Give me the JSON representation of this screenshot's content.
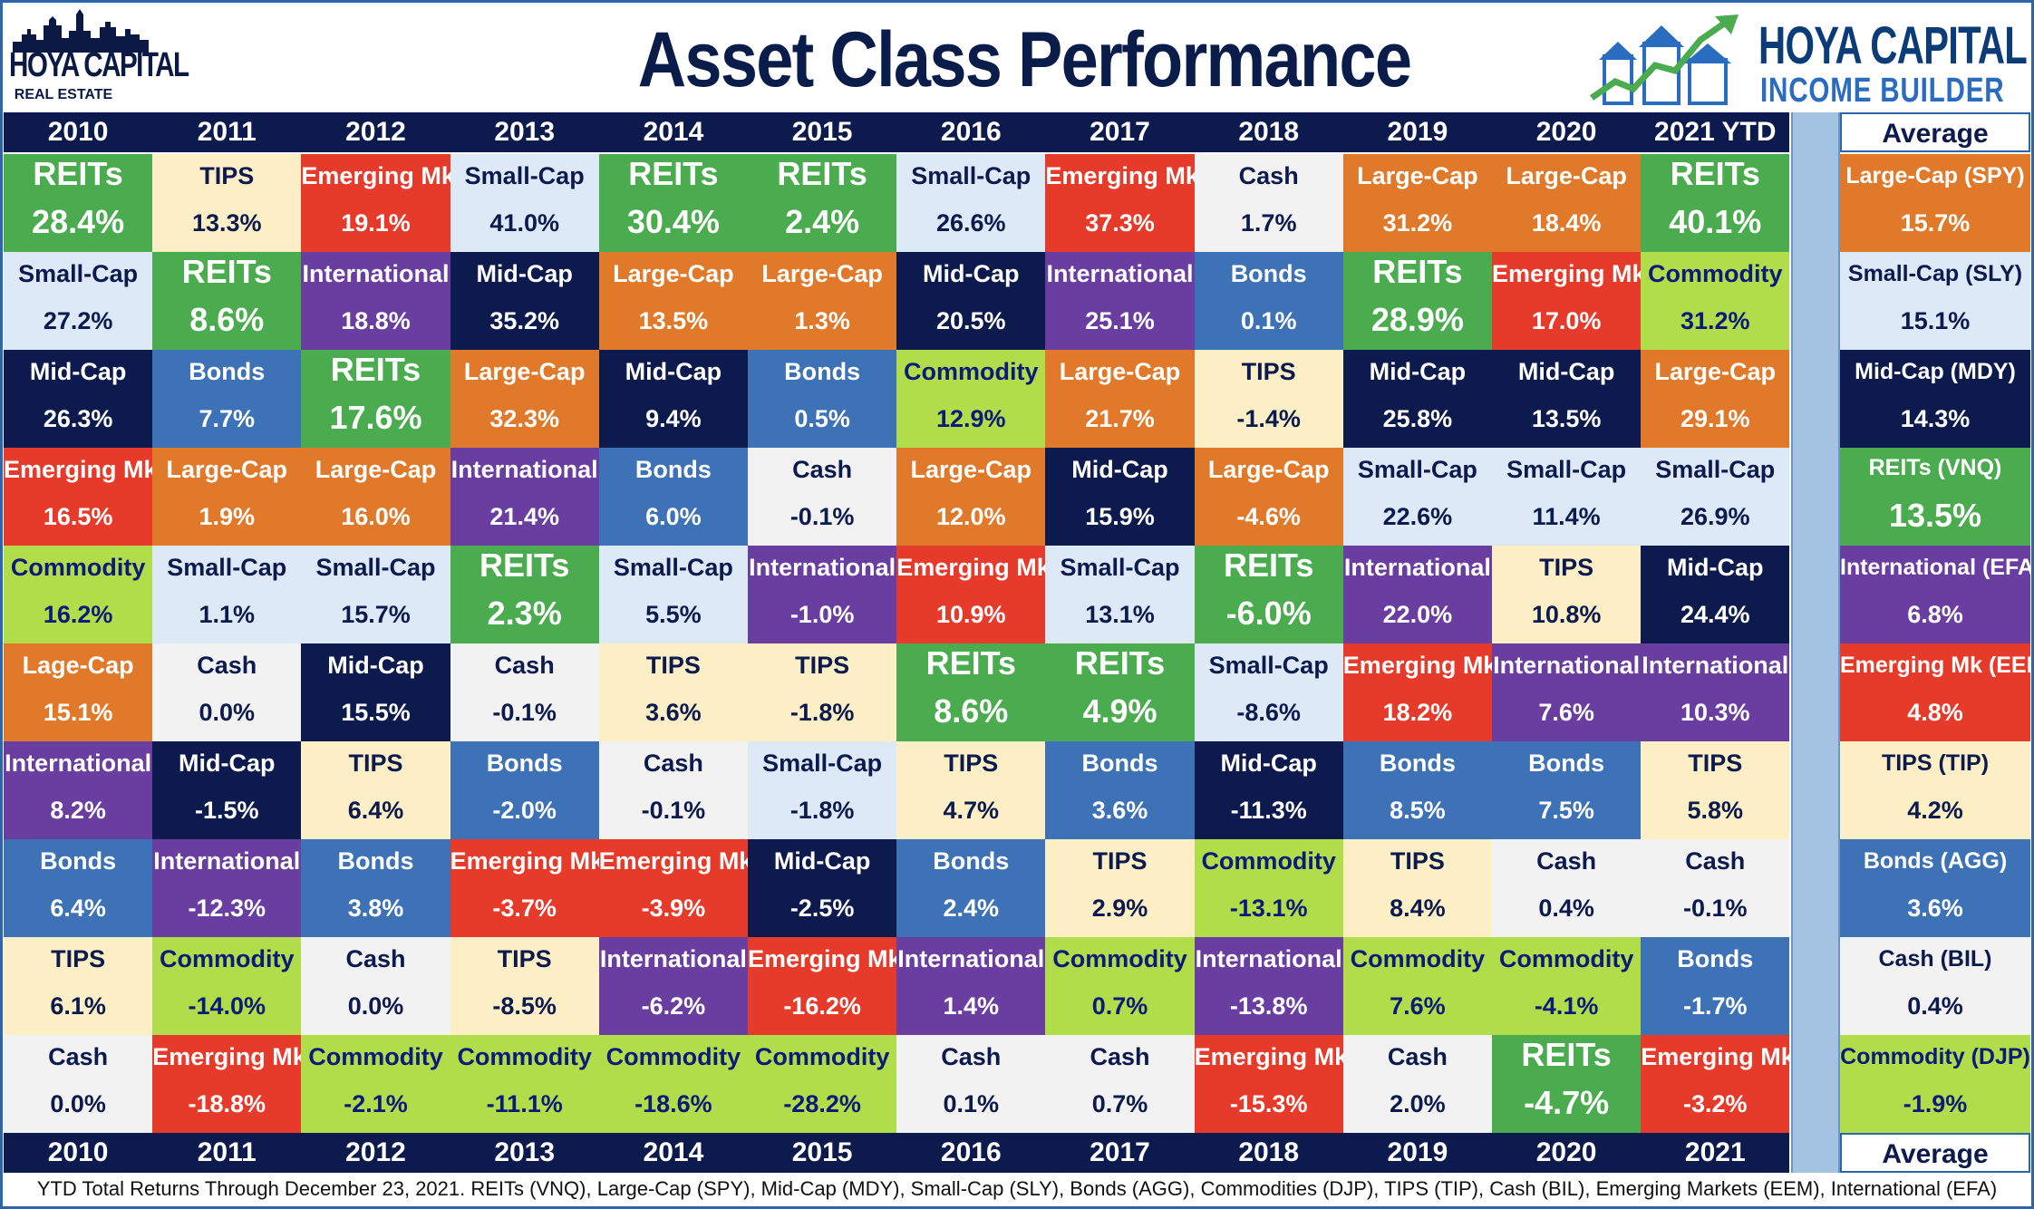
{
  "header": {
    "title": "Asset Class Performance",
    "left_logo_line1": "HOYA CAPITAL",
    "left_logo_line2": "REAL ESTATE",
    "right_logo_line1": "HOYA CAPITAL",
    "right_logo_line2": "INCOME BUILDER"
  },
  "years_top": [
    "2010",
    "2011",
    "2012",
    "2013",
    "2014",
    "2015",
    "2016",
    "2017",
    "2018",
    "2019",
    "2020",
    "2021 YTD"
  ],
  "years_bottom": [
    "2010",
    "2011",
    "2012",
    "2013",
    "2014",
    "2015",
    "2016",
    "2017",
    "2018",
    "2019",
    "2020",
    "2021"
  ],
  "average_label_top": "Average",
  "average_label_bottom": "Average",
  "colors": {
    "REITs": "#4aab4f",
    "Large-Cap": "#e07a2a",
    "Mid-Cap": "#0c1a4d",
    "Small-Cap": "#dde9f6",
    "Bonds": "#3e72b6",
    "Commodity": "#b0dd49",
    "TIPS": "#fcefc6",
    "Cash": "#f2f2f2",
    "Emerging Mk": "#e63a2a",
    "International": "#6a3ea0"
  },
  "chart_data": {
    "type": "table",
    "title": "Asset Class Performance",
    "columns": [
      "2010",
      "2011",
      "2012",
      "2013",
      "2014",
      "2015",
      "2016",
      "2017",
      "2018",
      "2019",
      "2020",
      "2021 YTD"
    ],
    "ranked_returns": [
      [
        {
          "asset": "REITs",
          "label": "REITs",
          "ret": "28.4%"
        },
        {
          "asset": "Small-Cap",
          "label": "Small-Cap",
          "ret": "27.2%"
        },
        {
          "asset": "Mid-Cap",
          "label": "Mid-Cap",
          "ret": "26.3%"
        },
        {
          "asset": "Emerging Mk",
          "label": "Emerging Mk",
          "ret": "16.5%"
        },
        {
          "asset": "Commodity",
          "label": "Commodity",
          "ret": "16.2%"
        },
        {
          "asset": "Large-Cap",
          "label": "Lage-Cap",
          "ret": "15.1%"
        },
        {
          "asset": "International",
          "label": "International",
          "ret": "8.2%"
        },
        {
          "asset": "Bonds",
          "label": "Bonds",
          "ret": "6.4%"
        },
        {
          "asset": "TIPS",
          "label": "TIPS",
          "ret": "6.1%"
        },
        {
          "asset": "Cash",
          "label": "Cash",
          "ret": "0.0%"
        }
      ],
      [
        {
          "asset": "TIPS",
          "label": "TIPS",
          "ret": "13.3%"
        },
        {
          "asset": "REITs",
          "label": "REITs",
          "ret": "8.6%"
        },
        {
          "asset": "Bonds",
          "label": "Bonds",
          "ret": "7.7%"
        },
        {
          "asset": "Large-Cap",
          "label": "Large-Cap",
          "ret": "1.9%"
        },
        {
          "asset": "Small-Cap",
          "label": "Small-Cap",
          "ret": "1.1%"
        },
        {
          "asset": "Cash",
          "label": "Cash",
          "ret": "0.0%"
        },
        {
          "asset": "Mid-Cap",
          "label": "Mid-Cap",
          "ret": "-1.5%"
        },
        {
          "asset": "International",
          "label": "International",
          "ret": "-12.3%"
        },
        {
          "asset": "Commodity",
          "label": "Commodity",
          "ret": "-14.0%"
        },
        {
          "asset": "Emerging Mk",
          "label": "Emerging Mk",
          "ret": "-18.8%"
        }
      ],
      [
        {
          "asset": "Emerging Mk",
          "label": "Emerging Mk",
          "ret": "19.1%"
        },
        {
          "asset": "International",
          "label": "International",
          "ret": "18.8%"
        },
        {
          "asset": "REITs",
          "label": "REITs",
          "ret": "17.6%"
        },
        {
          "asset": "Large-Cap",
          "label": "Large-Cap",
          "ret": "16.0%"
        },
        {
          "asset": "Small-Cap",
          "label": "Small-Cap",
          "ret": "15.7%"
        },
        {
          "asset": "Mid-Cap",
          "label": "Mid-Cap",
          "ret": "15.5%"
        },
        {
          "asset": "TIPS",
          "label": "TIPS",
          "ret": "6.4%"
        },
        {
          "asset": "Bonds",
          "label": "Bonds",
          "ret": "3.8%"
        },
        {
          "asset": "Cash",
          "label": "Cash",
          "ret": "0.0%"
        },
        {
          "asset": "Commodity",
          "label": "Commodity",
          "ret": "-2.1%"
        }
      ],
      [
        {
          "asset": "Small-Cap",
          "label": "Small-Cap",
          "ret": "41.0%"
        },
        {
          "asset": "Mid-Cap",
          "label": "Mid-Cap",
          "ret": "35.2%"
        },
        {
          "asset": "Large-Cap",
          "label": "Large-Cap",
          "ret": "32.3%"
        },
        {
          "asset": "International",
          "label": "International",
          "ret": "21.4%"
        },
        {
          "asset": "REITs",
          "label": "REITs",
          "ret": "2.3%"
        },
        {
          "asset": "Cash",
          "label": "Cash",
          "ret": "-0.1%"
        },
        {
          "asset": "Bonds",
          "label": "Bonds",
          "ret": "-2.0%"
        },
        {
          "asset": "Emerging Mk",
          "label": "Emerging Mk",
          "ret": "-3.7%"
        },
        {
          "asset": "TIPS",
          "label": "TIPS",
          "ret": "-8.5%"
        },
        {
          "asset": "Commodity",
          "label": "Commodity",
          "ret": "-11.1%"
        }
      ],
      [
        {
          "asset": "REITs",
          "label": "REITs",
          "ret": "30.4%"
        },
        {
          "asset": "Large-Cap",
          "label": "Large-Cap",
          "ret": "13.5%"
        },
        {
          "asset": "Mid-Cap",
          "label": "Mid-Cap",
          "ret": "9.4%"
        },
        {
          "asset": "Bonds",
          "label": "Bonds",
          "ret": "6.0%"
        },
        {
          "asset": "Small-Cap",
          "label": "Small-Cap",
          "ret": "5.5%"
        },
        {
          "asset": "TIPS",
          "label": "TIPS",
          "ret": "3.6%"
        },
        {
          "asset": "Cash",
          "label": "Cash",
          "ret": "-0.1%"
        },
        {
          "asset": "Emerging Mk",
          "label": "Emerging Mk",
          "ret": "-3.9%"
        },
        {
          "asset": "International",
          "label": "International",
          "ret": "-6.2%"
        },
        {
          "asset": "Commodity",
          "label": "Commodity",
          "ret": "-18.6%"
        }
      ],
      [
        {
          "asset": "REITs",
          "label": "REITs",
          "ret": "2.4%"
        },
        {
          "asset": "Large-Cap",
          "label": "Large-Cap",
          "ret": "1.3%"
        },
        {
          "asset": "Bonds",
          "label": "Bonds",
          "ret": "0.5%"
        },
        {
          "asset": "Cash",
          "label": "Cash",
          "ret": "-0.1%"
        },
        {
          "asset": "International",
          "label": "International",
          "ret": "-1.0%"
        },
        {
          "asset": "TIPS",
          "label": "TIPS",
          "ret": "-1.8%"
        },
        {
          "asset": "Small-Cap",
          "label": "Small-Cap",
          "ret": "-1.8%"
        },
        {
          "asset": "Mid-Cap",
          "label": "Mid-Cap",
          "ret": "-2.5%"
        },
        {
          "asset": "Emerging Mk",
          "label": "Emerging Mk",
          "ret": "-16.2%"
        },
        {
          "asset": "Commodity",
          "label": "Commodity",
          "ret": "-28.2%"
        }
      ],
      [
        {
          "asset": "Small-Cap",
          "label": "Small-Cap",
          "ret": "26.6%"
        },
        {
          "asset": "Mid-Cap",
          "label": "Mid-Cap",
          "ret": "20.5%"
        },
        {
          "asset": "Commodity",
          "label": "Commodity",
          "ret": "12.9%"
        },
        {
          "asset": "Large-Cap",
          "label": "Large-Cap",
          "ret": "12.0%"
        },
        {
          "asset": "Emerging Mk",
          "label": "Emerging Mk",
          "ret": "10.9%"
        },
        {
          "asset": "REITs",
          "label": "REITs",
          "ret": "8.6%"
        },
        {
          "asset": "TIPS",
          "label": "TIPS",
          "ret": "4.7%"
        },
        {
          "asset": "Bonds",
          "label": "Bonds",
          "ret": "2.4%"
        },
        {
          "asset": "International",
          "label": "International",
          "ret": "1.4%"
        },
        {
          "asset": "Cash",
          "label": "Cash",
          "ret": "0.1%"
        }
      ],
      [
        {
          "asset": "Emerging Mk",
          "label": "Emerging Mk",
          "ret": "37.3%"
        },
        {
          "asset": "International",
          "label": "International",
          "ret": "25.1%"
        },
        {
          "asset": "Large-Cap",
          "label": "Large-Cap",
          "ret": "21.7%"
        },
        {
          "asset": "Mid-Cap",
          "label": "Mid-Cap",
          "ret": "15.9%"
        },
        {
          "asset": "Small-Cap",
          "label": "Small-Cap",
          "ret": "13.1%"
        },
        {
          "asset": "REITs",
          "label": "REITs",
          "ret": "4.9%"
        },
        {
          "asset": "Bonds",
          "label": "Bonds",
          "ret": "3.6%"
        },
        {
          "asset": "TIPS",
          "label": "TIPS",
          "ret": "2.9%"
        },
        {
          "asset": "Commodity",
          "label": "Commodity",
          "ret": "0.7%"
        },
        {
          "asset": "Cash",
          "label": "Cash",
          "ret": "0.7%"
        }
      ],
      [
        {
          "asset": "Cash",
          "label": "Cash",
          "ret": "1.7%"
        },
        {
          "asset": "Bonds",
          "label": "Bonds",
          "ret": "0.1%"
        },
        {
          "asset": "TIPS",
          "label": "TIPS",
          "ret": "-1.4%"
        },
        {
          "asset": "Large-Cap",
          "label": "Large-Cap",
          "ret": "-4.6%"
        },
        {
          "asset": "REITs",
          "label": "REITs",
          "ret": "-6.0%"
        },
        {
          "asset": "Small-Cap",
          "label": "Small-Cap",
          "ret": "-8.6%"
        },
        {
          "asset": "Mid-Cap",
          "label": "Mid-Cap",
          "ret": "-11.3%"
        },
        {
          "asset": "Commodity",
          "label": "Commodity",
          "ret": "-13.1%"
        },
        {
          "asset": "International",
          "label": "International",
          "ret": "-13.8%"
        },
        {
          "asset": "Emerging Mk",
          "label": "Emerging Mk",
          "ret": "-15.3%"
        }
      ],
      [
        {
          "asset": "Large-Cap",
          "label": "Large-Cap",
          "ret": "31.2%"
        },
        {
          "asset": "REITs",
          "label": "REITs",
          "ret": "28.9%"
        },
        {
          "asset": "Mid-Cap",
          "label": "Mid-Cap",
          "ret": "25.8%"
        },
        {
          "asset": "Small-Cap",
          "label": "Small-Cap",
          "ret": "22.6%"
        },
        {
          "asset": "International",
          "label": "International",
          "ret": "22.0%"
        },
        {
          "asset": "Emerging Mk",
          "label": "Emerging Mk",
          "ret": "18.2%"
        },
        {
          "asset": "Bonds",
          "label": "Bonds",
          "ret": "8.5%"
        },
        {
          "asset": "TIPS",
          "label": "TIPS",
          "ret": "8.4%"
        },
        {
          "asset": "Commodity",
          "label": "Commodity",
          "ret": "7.6%"
        },
        {
          "asset": "Cash",
          "label": "Cash",
          "ret": "2.0%"
        }
      ],
      [
        {
          "asset": "Large-Cap",
          "label": "Large-Cap",
          "ret": "18.4%"
        },
        {
          "asset": "Emerging Mk",
          "label": "Emerging Mk",
          "ret": "17.0%"
        },
        {
          "asset": "Mid-Cap",
          "label": "Mid-Cap",
          "ret": "13.5%"
        },
        {
          "asset": "Small-Cap",
          "label": "Small-Cap",
          "ret": "11.4%"
        },
        {
          "asset": "TIPS",
          "label": "TIPS",
          "ret": "10.8%"
        },
        {
          "asset": "International",
          "label": "International",
          "ret": "7.6%"
        },
        {
          "asset": "Bonds",
          "label": "Bonds",
          "ret": "7.5%"
        },
        {
          "asset": "Cash",
          "label": "Cash",
          "ret": "0.4%"
        },
        {
          "asset": "Commodity",
          "label": "Commodity",
          "ret": "-4.1%"
        },
        {
          "asset": "REITs",
          "label": "REITs",
          "ret": "-4.7%"
        }
      ],
      [
        {
          "asset": "REITs",
          "label": "REITs",
          "ret": "40.1%"
        },
        {
          "asset": "Commodity",
          "label": "Commodity",
          "ret": "31.2%"
        },
        {
          "asset": "Large-Cap",
          "label": "Large-Cap",
          "ret": "29.1%"
        },
        {
          "asset": "Small-Cap",
          "label": "Small-Cap",
          "ret": "26.9%"
        },
        {
          "asset": "Mid-Cap",
          "label": "Mid-Cap",
          "ret": "24.4%"
        },
        {
          "asset": "International",
          "label": "International",
          "ret": "10.3%"
        },
        {
          "asset": "TIPS",
          "label": "TIPS",
          "ret": "5.8%"
        },
        {
          "asset": "Cash",
          "label": "Cash",
          "ret": "-0.1%"
        },
        {
          "asset": "Bonds",
          "label": "Bonds",
          "ret": "-1.7%"
        },
        {
          "asset": "Emerging Mk",
          "label": "Emerging Mk",
          "ret": "-3.2%"
        }
      ]
    ],
    "average": [
      {
        "asset": "Large-Cap",
        "label": "Large-Cap (SPY)",
        "ret": "15.7%"
      },
      {
        "asset": "Small-Cap",
        "label": "Small-Cap (SLY)",
        "ret": "15.1%"
      },
      {
        "asset": "Mid-Cap",
        "label": "Mid-Cap (MDY)",
        "ret": "14.3%"
      },
      {
        "asset": "REITs",
        "label": "REITs (VNQ)",
        "ret": "13.5%"
      },
      {
        "asset": "International",
        "label": "International (EFA)",
        "ret": "6.8%"
      },
      {
        "asset": "Emerging Mk",
        "label": "Emerging Mk (EEM)",
        "ret": "4.8%"
      },
      {
        "asset": "TIPS",
        "label": "TIPS (TIP)",
        "ret": "4.2%"
      },
      {
        "asset": "Bonds",
        "label": "Bonds (AGG)",
        "ret": "3.6%"
      },
      {
        "asset": "Cash",
        "label": "Cash (BIL)",
        "ret": "0.4%"
      },
      {
        "asset": "Commodity",
        "label": "Commodity (DJP)",
        "ret": "-1.9%"
      }
    ]
  },
  "footnote": "YTD Total Returns Through December 23, 2021. REITs (VNQ), Large-Cap (SPY), Mid-Cap (MDY), Small-Cap (SLY), Bonds (AGG), Commodities (DJP), TIPS (TIP), Cash (BIL), Emerging Markets (EEM), International (EFA)"
}
